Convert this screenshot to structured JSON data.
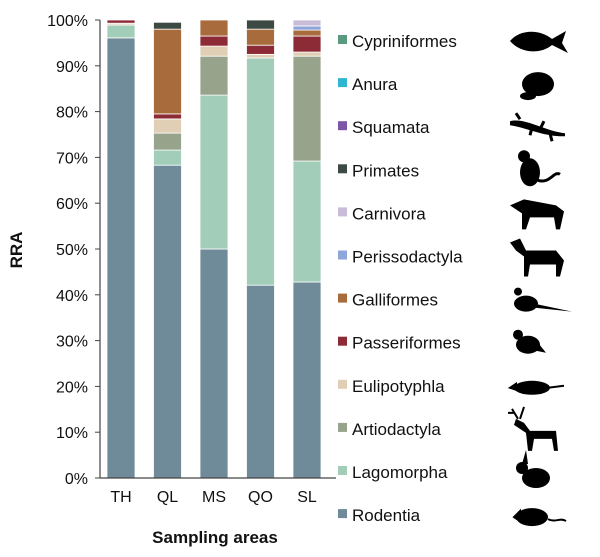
{
  "chart_data": {
    "type": "bar",
    "stacked": true,
    "title": "",
    "xlabel": "Sampling areas",
    "ylabel": "RRA",
    "ylim": [
      0,
      100
    ],
    "yticks": [
      "0%",
      "10%",
      "20%",
      "30%",
      "40%",
      "50%",
      "60%",
      "70%",
      "80%",
      "90%",
      "100%"
    ],
    "categories": [
      "TH",
      "QL",
      "MS",
      "QO",
      "SL"
    ],
    "series": [
      {
        "name": "Rodentia",
        "color": "#6f8a98",
        "values": [
          96.1,
          68.3,
          50.0,
          42.1,
          42.8
        ]
      },
      {
        "name": "Lagomorpha",
        "color": "#a2cdb8",
        "values": [
          2.8,
          3.3,
          33.6,
          49.6,
          26.4
        ]
      },
      {
        "name": "Artiodactyla",
        "color": "#97a38a",
        "values": [
          0,
          3.7,
          8.5,
          0,
          22.9
        ]
      },
      {
        "name": "Eulipotyphla",
        "color": "#e0cfb5",
        "values": [
          0.4,
          3.1,
          2.2,
          0.8,
          0.9
        ]
      },
      {
        "name": "Passeriformes",
        "color": "#8c2a35",
        "values": [
          0.7,
          1.1,
          2.2,
          2.0,
          3.5
        ]
      },
      {
        "name": "Galliformes",
        "color": "#a86c3c",
        "values": [
          0,
          18.5,
          3.5,
          3.5,
          1.3
        ]
      },
      {
        "name": "Perissodactyla",
        "color": "#8fa6da",
        "values": [
          0,
          0,
          0,
          0,
          0.9
        ]
      },
      {
        "name": "Carnivora",
        "color": "#c9bcd8",
        "values": [
          0,
          0,
          0,
          0,
          1.3
        ]
      },
      {
        "name": "Primates",
        "color": "#3d4a44",
        "values": [
          0,
          1.5,
          0,
          2.0,
          0
        ]
      },
      {
        "name": "Squamata",
        "color": "#7d55a6",
        "values": [
          0,
          0,
          0,
          0,
          0
        ]
      },
      {
        "name": "Anura",
        "color": "#2fb5cf",
        "values": [
          0,
          0,
          0,
          0,
          0
        ]
      },
      {
        "name": "Cypriniformes",
        "color": "#5a9a80",
        "values": [
          0,
          0,
          0,
          0,
          0
        ]
      }
    ],
    "legend_order": [
      "Cypriniformes",
      "Anura",
      "Squamata",
      "Primates",
      "Carnivora",
      "Perissodactyla",
      "Galliformes",
      "Passeriformes",
      "Eulipotyphla",
      "Artiodactyla",
      "Lagomorpha",
      "Rodentia"
    ],
    "legend_icons": [
      "fish-icon",
      "frog-icon",
      "lizard-icon",
      "monkey-icon",
      "wolf-icon",
      "horse-icon",
      "pheasant-icon",
      "bird-icon",
      "shrew-icon",
      "deer-icon",
      "rabbit-icon",
      "rat-icon"
    ],
    "legend_placement": "right",
    "grid": false
  }
}
